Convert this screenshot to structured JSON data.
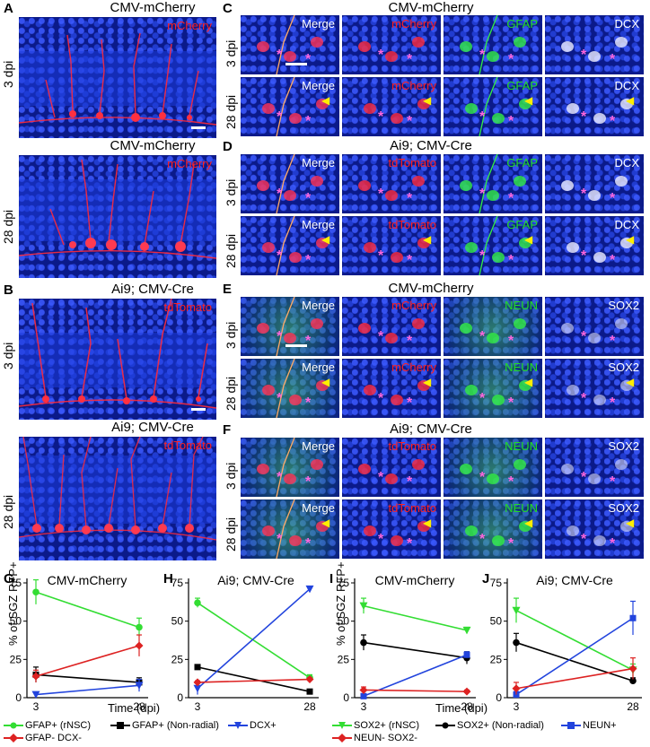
{
  "panels": {
    "A": {
      "letter": "A",
      "title_top": "CMV-mCherry",
      "title_bottom": "CMV-mCherry",
      "channel": "mCherry",
      "rows": [
        "3 dpi",
        "28 dpi"
      ]
    },
    "B": {
      "letter": "B",
      "title_top": "Ai9; CMV-Cre",
      "title_bottom": "Ai9; CMV-Cre",
      "channel": "tdTomato",
      "rows": [
        "3 dpi",
        "28 dpi"
      ]
    },
    "C": {
      "letter": "C",
      "title": "CMV-mCherry",
      "channels": [
        "Merge",
        "mCherry",
        "GFAP",
        "DCX"
      ],
      "rows": [
        "3 dpi",
        "28 dpi"
      ]
    },
    "D": {
      "letter": "D",
      "title": "Ai9; CMV-Cre",
      "channels": [
        "Merge",
        "tdTomato",
        "GFAP",
        "DCX"
      ],
      "rows": [
        "3 dpi",
        "28 dpi"
      ]
    },
    "E": {
      "letter": "E",
      "title": "CMV-mCherry",
      "channels": [
        "Merge",
        "mCherry",
        "NEUN",
        "SOX2"
      ],
      "rows": [
        "3 dpi",
        "28 dpi"
      ]
    },
    "F": {
      "letter": "F",
      "title": "Ai9; CMV-Cre",
      "channels": [
        "Merge",
        "tdTomato",
        "NEUN",
        "SOX2"
      ],
      "rows": [
        "3 dpi",
        "28 dpi"
      ]
    }
  },
  "colors": {
    "red": "#ff2020",
    "green": "#22dd22",
    "white": "#ffffff",
    "gfap_rnsc": "#33dd33",
    "gfap_nonradial": "#000000",
    "dcx": "#2244dd",
    "gfap_neg": "#dd2222"
  },
  "ylabel_left": "% of SGZ RFP+",
  "ylabel_right": "% of SGZ RFP+",
  "xlabel": "Time (dpi)",
  "legend_left": [
    "GFAP+ (rNSC)",
    "GFAP+ (Non-radial)",
    "DCX+",
    "GFAP- DCX-"
  ],
  "legend_right": [
    "SOX2+ (rNSC)",
    "SOX2+ (Non-radial)",
    "NEUN+",
    "NEUN- SOX2-"
  ],
  "chart_data": [
    {
      "panel": "G",
      "type": "line",
      "title": "CMV-mCherry",
      "x": [
        3,
        28
      ],
      "xlabel": "Time (dpi)",
      "ylabel": "% of SGZ RFP+",
      "ylim": [
        0,
        75
      ],
      "yticks": [
        0,
        25,
        50,
        75
      ],
      "xticks": [
        "3",
        "28"
      ],
      "series": [
        {
          "name": "GFAP+ (rNSC)",
          "color": "#33dd33",
          "marker": "circle",
          "values": [
            69,
            46
          ],
          "err": [
            8,
            6
          ]
        },
        {
          "name": "GFAP+ (Non-radial)",
          "color": "#000000",
          "marker": "square",
          "values": [
            15,
            10
          ],
          "err": [
            5,
            3
          ]
        },
        {
          "name": "DCX+",
          "color": "#2244dd",
          "marker": "triangle",
          "values": [
            2,
            8
          ],
          "err": [
            1,
            4
          ]
        },
        {
          "name": "GFAP- DCX-",
          "color": "#dd2222",
          "marker": "diamond",
          "values": [
            14,
            34
          ],
          "err": [
            4,
            7
          ]
        }
      ]
    },
    {
      "panel": "H",
      "type": "line",
      "title": "Ai9; CMV-Cre",
      "x": [
        3,
        28
      ],
      "ylim": [
        0,
        75
      ],
      "yticks": [
        0,
        25,
        50,
        75
      ],
      "xticks": [
        "3",
        "28"
      ],
      "series": [
        {
          "name": "GFAP+ (rNSC)",
          "color": "#33dd33",
          "marker": "circle",
          "values": [
            62,
            13
          ],
          "err": [
            3,
            2
          ]
        },
        {
          "name": "GFAP+ (Non-radial)",
          "color": "#000000",
          "marker": "square",
          "values": [
            20,
            4
          ],
          "err": [
            1,
            1
          ]
        },
        {
          "name": "DCX+",
          "color": "#2244dd",
          "marker": "triangle",
          "values": [
            6,
            71
          ],
          "err": [
            4,
            1
          ]
        },
        {
          "name": "GFAP- DCX-",
          "color": "#dd2222",
          "marker": "diamond",
          "values": [
            10,
            12
          ],
          "err": [
            1,
            1
          ]
        }
      ]
    },
    {
      "panel": "I",
      "type": "line",
      "title": "CMV-mCherry",
      "x": [
        3,
        28
      ],
      "xlabel": "Time (dpi)",
      "ylabel": "% of SGZ RFP+",
      "ylim": [
        0,
        75
      ],
      "yticks": [
        0,
        25,
        50,
        75
      ],
      "xticks": [
        "3",
        "28"
      ],
      "series": [
        {
          "name": "SOX2+ (rNSC)",
          "color": "#33dd33",
          "marker": "triangle-down",
          "values": [
            60,
            44
          ],
          "err": [
            5,
            2
          ]
        },
        {
          "name": "SOX2+ (Non-radial)",
          "color": "#000000",
          "marker": "circle",
          "values": [
            36,
            26
          ],
          "err": [
            5,
            4
          ]
        },
        {
          "name": "NEUN+",
          "color": "#2244dd",
          "marker": "square",
          "values": [
            1,
            28
          ],
          "err": [
            1,
            2
          ]
        },
        {
          "name": "NEUN- SOX2-",
          "color": "#dd2222",
          "marker": "diamond",
          "values": [
            5,
            4
          ],
          "err": [
            2,
            1
          ]
        }
      ]
    },
    {
      "panel": "J",
      "type": "line",
      "title": "Ai9; CMV-Cre",
      "x": [
        3,
        28
      ],
      "ylim": [
        0,
        75
      ],
      "yticks": [
        0,
        25,
        50,
        75
      ],
      "xticks": [
        "3",
        "28"
      ],
      "series": [
        {
          "name": "SOX2+ (rNSC)",
          "color": "#33dd33",
          "marker": "triangle-down",
          "values": [
            57,
            18
          ],
          "err": [
            8,
            4
          ]
        },
        {
          "name": "SOX2+ (Non-radial)",
          "color": "#000000",
          "marker": "circle",
          "values": [
            36,
            11
          ],
          "err": [
            6,
            2
          ]
        },
        {
          "name": "NEUN+",
          "color": "#2244dd",
          "marker": "square",
          "values": [
            2,
            52
          ],
          "err": [
            2,
            11
          ]
        },
        {
          "name": "NEUN- SOX2-",
          "color": "#dd2222",
          "marker": "diamond",
          "values": [
            6,
            19
          ],
          "err": [
            4,
            7
          ]
        }
      ]
    }
  ]
}
